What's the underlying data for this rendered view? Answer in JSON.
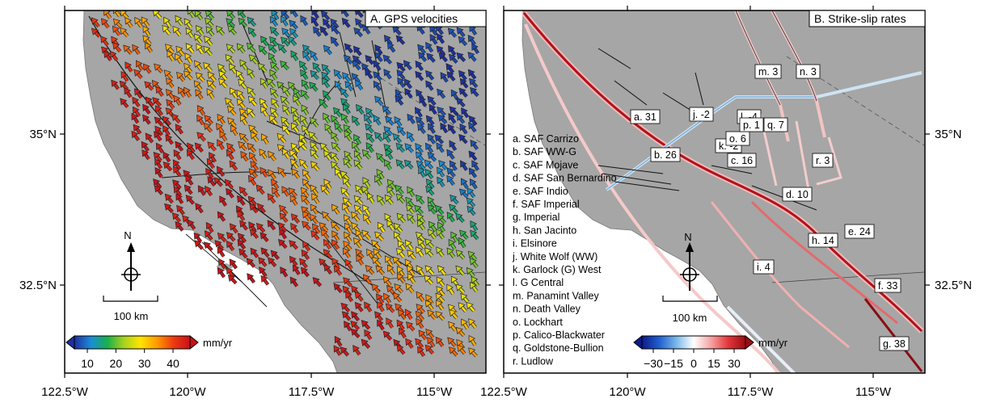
{
  "axes": {
    "x_tick_labels": [
      "122.5°W",
      "120°W",
      "117.5°W",
      "115°W"
    ],
    "y_tick_labels": [
      "35°N",
      "32.5°N"
    ]
  },
  "panel_a": {
    "title": "A. GPS velocities",
    "north_label": "N",
    "scale_label": "100 km",
    "colorbar_unit": "mm/yr",
    "colorbar_ticks": [
      "10",
      "20",
      "30",
      "40"
    ],
    "colorbar_colors": [
      "#1f2fa0",
      "#1a8cd8",
      "#19b04a",
      "#a8d21e",
      "#ffe400",
      "#ff9a00",
      "#ee3a10",
      "#c8111a"
    ]
  },
  "panel_b": {
    "title": "B. Strike-slip rates",
    "north_label": "N",
    "scale_label": "100 km",
    "colorbar_unit": "mm/yr",
    "colorbar_ticks": [
      "−30",
      "−15",
      "0",
      "15",
      "30"
    ],
    "colorbar_colors": [
      "#0d1a8a",
      "#1f5fd0",
      "#7ab8ea",
      "#ffffff",
      "#f5a3a3",
      "#e4363a",
      "#9a0c12"
    ],
    "fault_legend": [
      "a. SAF Carrizo",
      "b. SAF WW-G",
      "c. SAF Mojave",
      "d. SAF San Bernardino",
      "e. SAF Indio",
      "f. SAF Imperial",
      "g. Imperial",
      "h. San Jacinto",
      "i. Elsinore",
      "j. White Wolf (WW)",
      "k. Garlock (G) West",
      "l. G Central",
      "m. Panamint Valley",
      "n. Death Valley",
      "o. Lockhart",
      "p. Calico-Blackwater",
      "q. Goldstone-Bullion",
      "r. Ludlow"
    ],
    "rate_labels": [
      {
        "text": "a. 31",
        "rate": 31
      },
      {
        "text": "b. 26",
        "rate": 26
      },
      {
        "text": "c. 16",
        "rate": 16
      },
      {
        "text": "d. 10",
        "rate": 10
      },
      {
        "text": "e. 24",
        "rate": 24
      },
      {
        "text": "f. 33",
        "rate": 33
      },
      {
        "text": "g. 38",
        "rate": 38
      },
      {
        "text": "h. 14",
        "rate": 14
      },
      {
        "text": "i. 4",
        "rate": 4
      },
      {
        "text": "j. -2",
        "rate": -2
      },
      {
        "text": "k. -2",
        "rate": -2
      },
      {
        "text": "l. -4",
        "rate": -4
      },
      {
        "text": "m. 3",
        "rate": 3
      },
      {
        "text": "n. 3",
        "rate": 3
      },
      {
        "text": "o. 6",
        "rate": 6
      },
      {
        "text": "p. 1",
        "rate": 1
      },
      {
        "text": "q. 7",
        "rate": 7
      },
      {
        "text": "r. 3",
        "rate": 3
      }
    ]
  }
}
